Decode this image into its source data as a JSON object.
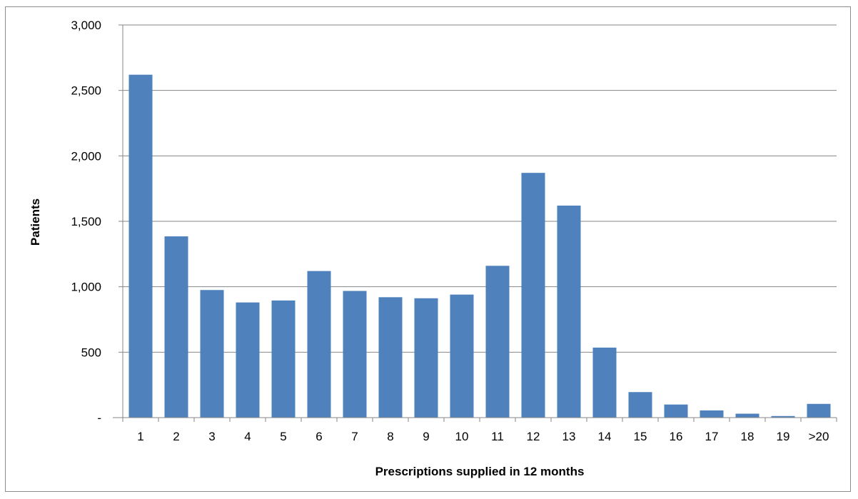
{
  "chart_data": {
    "type": "bar",
    "title": "",
    "xlabel": "Prescriptions supplied in 12 months",
    "ylabel": "Patients",
    "ylim": [
      0,
      3000
    ],
    "y_ticks": [
      {
        "value": 0,
        "label": "-"
      },
      {
        "value": 500,
        "label": "500"
      },
      {
        "value": 1000,
        "label": "1,000"
      },
      {
        "value": 1500,
        "label": "1,500"
      },
      {
        "value": 2000,
        "label": "2,000"
      },
      {
        "value": 2500,
        "label": "2,500"
      },
      {
        "value": 3000,
        "label": "3,000"
      }
    ],
    "categories": [
      "1",
      "2",
      "3",
      "4",
      "5",
      "6",
      "7",
      "8",
      "9",
      "10",
      "11",
      "12",
      "13",
      "14",
      "15",
      "16",
      "17",
      "18",
      "19",
      ">20"
    ],
    "values": [
      2620,
      1385,
      975,
      880,
      895,
      1120,
      968,
      920,
      912,
      940,
      1160,
      1870,
      1620,
      535,
      195,
      100,
      55,
      30,
      12,
      105
    ],
    "grid": true,
    "legend": "none",
    "bar_color": "#4f81bd"
  }
}
